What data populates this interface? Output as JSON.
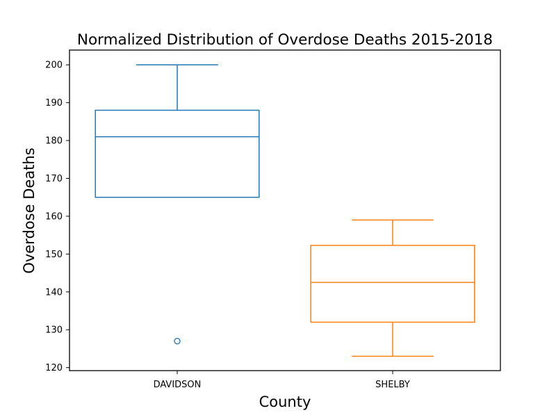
{
  "chart_data": {
    "type": "box",
    "title": "Normalized Distribution of Overdose Deaths 2015-2018",
    "xlabel": "County",
    "ylabel": "Overdose Deaths",
    "categories": [
      "DAVIDSON",
      "SHELBY"
    ],
    "ylim": [
      119.2,
      203.9
    ],
    "yticks": [
      120,
      130,
      140,
      150,
      160,
      170,
      180,
      190,
      200
    ],
    "grid": false,
    "boxes": [
      {
        "category": "DAVIDSON",
        "whisker_low": 165,
        "q1": 165,
        "median": 181,
        "q3": 188,
        "whisker_high": 200,
        "outliers": [
          127
        ],
        "color": "#1f77b4"
      },
      {
        "category": "SHELBY",
        "whisker_low": 123,
        "q1": 132,
        "median": 142.5,
        "q3": 152.3,
        "whisker_high": 159,
        "outliers": [],
        "color": "#ff7f0e"
      }
    ]
  }
}
